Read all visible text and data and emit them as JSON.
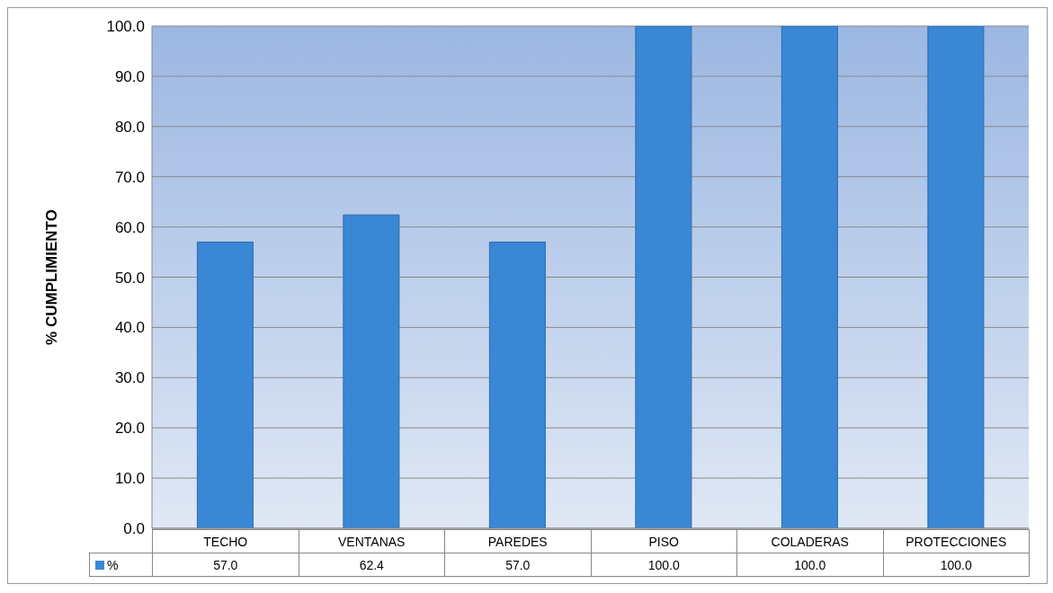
{
  "chart_data": {
    "type": "bar",
    "ylabel": "% CUMPLIMIENTO",
    "categories": [
      "TECHO",
      "VENTANAS",
      "PAREDES",
      "PISO",
      "COLADERAS",
      "PROTECCIONES"
    ],
    "series": [
      {
        "name": "%",
        "color": "#3a87d5",
        "values": [
          57.0,
          62.4,
          57.0,
          100.0,
          100.0,
          100.0
        ],
        "value_labels": [
          "57.0",
          "62.4",
          "57.0",
          "100.0",
          "100.0",
          "100.0"
        ]
      }
    ],
    "ylim": [
      0,
      100
    ],
    "yticks": [
      {
        "value": 0,
        "label": "0.0"
      },
      {
        "value": 10,
        "label": "10.0"
      },
      {
        "value": 20,
        "label": "20.0"
      },
      {
        "value": 30,
        "label": "30.0"
      },
      {
        "value": 40,
        "label": "40.0"
      },
      {
        "value": 50,
        "label": "50.0"
      },
      {
        "value": 60,
        "label": "60.0"
      },
      {
        "value": 70,
        "label": "70.0"
      },
      {
        "value": 80,
        "label": "80.0"
      },
      {
        "value": 90,
        "label": "90.0"
      },
      {
        "value": 100,
        "label": "100.0"
      }
    ],
    "grid": "y",
    "legend": "bottom left"
  }
}
